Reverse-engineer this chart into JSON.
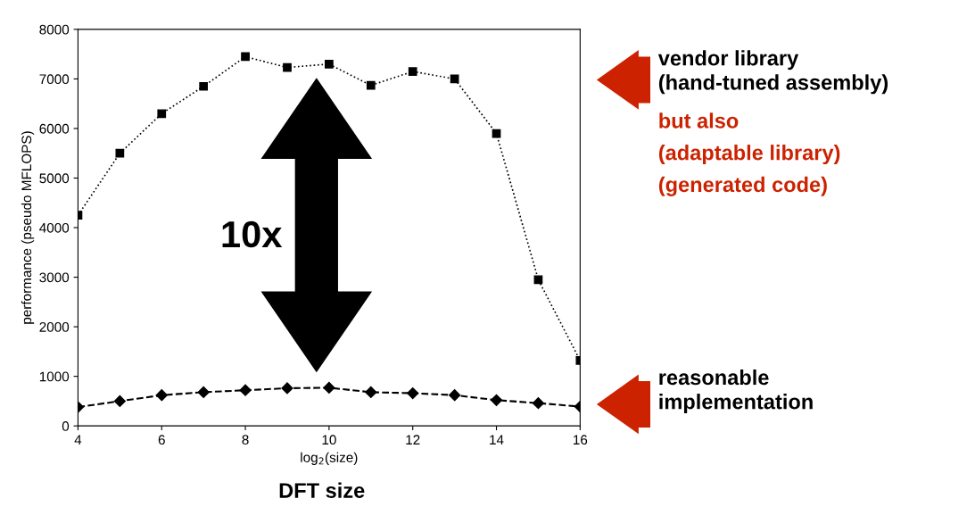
{
  "chart_data": {
    "type": "line",
    "xlabel": "log$_{2}$(size)",
    "ylabel": "performance (pseudo MFLOPS)",
    "x": [
      4,
      5,
      6,
      7,
      8,
      9,
      10,
      11,
      12,
      13,
      14,
      15,
      16
    ],
    "series": [
      {
        "color": "#000000",
        "marker": "square",
        "line_style": "dotted",
        "values": [
          4250,
          5500,
          6300,
          6850,
          7450,
          7230,
          7300,
          6870,
          7150,
          7000,
          5900,
          2950,
          1320
        ]
      },
      {
        "color": "#000000",
        "marker": "diamond",
        "line_style": "dashed",
        "values": [
          380,
          500,
          620,
          680,
          720,
          760,
          770,
          680,
          660,
          620,
          520,
          460,
          390
        ]
      }
    ],
    "xlim": [
      4,
      16
    ],
    "xticks": [
      4,
      6,
      8,
      10,
      12,
      14,
      16
    ],
    "ylim": [
      0,
      8000
    ],
    "yticks": [
      0,
      1000,
      2000,
      3000,
      4000,
      5000,
      6000,
      7000,
      8000
    ],
    "grid": false,
    "legend": false,
    "annotations": [
      "10x",
      "vendor library\n(hand-tuned assembly)",
      "but also",
      "(adaptable library)",
      "(generated code)",
      "reasonable\nimplementation",
      "DFT size"
    ]
  }
}
